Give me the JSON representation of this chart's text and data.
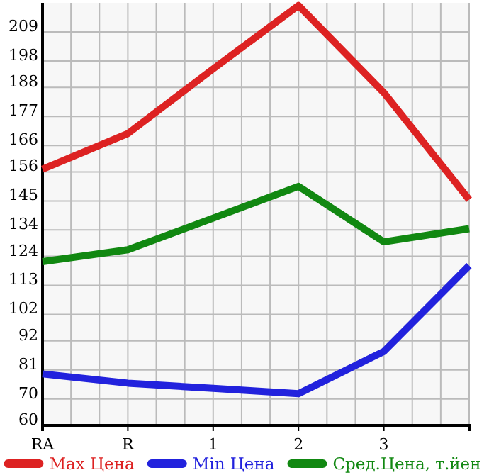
{
  "chart_data": {
    "type": "line",
    "categories": [
      "RA",
      "R",
      "1",
      "2",
      "3",
      null
    ],
    "series": [
      {
        "name": "Max Цена",
        "color": "#dd2222",
        "values": [
          157,
          170.5,
          195,
          219,
          186,
          145.5
        ]
      },
      {
        "name": "Min Цена",
        "color": "#2222dd",
        "values": [
          79.5,
          76,
          74,
          72,
          88,
          120.5
        ]
      },
      {
        "name": "Сред.Цена, т.йен",
        "color": "#118811",
        "values": [
          122,
          126.5,
          138.5,
          150.5,
          129.5,
          134.5
        ]
      }
    ],
    "ylim": [
      60,
      220
    ],
    "yticks": [
      60,
      70,
      81,
      92,
      102,
      113,
      124,
      134,
      145,
      156,
      166,
      177,
      188,
      198,
      209
    ],
    "grid": true,
    "legend": "bottom",
    "marker": "none",
    "line_style": "solid"
  }
}
